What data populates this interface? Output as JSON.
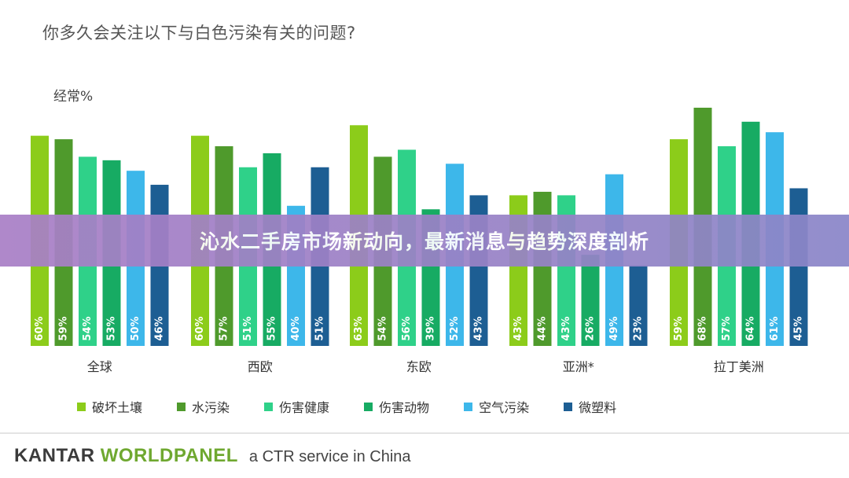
{
  "banner": {
    "text": "沁水二手房市场新动向，最新消息与趋势深度剖析"
  },
  "footer": {
    "brand_left": "KANTAR ",
    "brand_right": "WORLDPANEL",
    "tagline": "a CTR service in China"
  },
  "chart_data": {
    "type": "bar",
    "title": "你多久会关注以下与白色污染有关的问题?",
    "ylabel": "经常%",
    "ylim": [
      0,
      70
    ],
    "grid": false,
    "legend_position": "bottom",
    "categories": [
      "全球",
      "西欧",
      "东欧",
      "亚洲*",
      "拉丁美洲"
    ],
    "series": [
      {
        "name": "破坏土壤",
        "color": "#8ccc1a",
        "values": [
          60,
          60,
          63,
          43,
          59
        ]
      },
      {
        "name": "水污染",
        "color": "#4f9a2c",
        "values": [
          59,
          57,
          54,
          44,
          68
        ]
      },
      {
        "name": "伤害健康",
        "color": "#2fd189",
        "values": [
          54,
          51,
          56,
          43,
          57
        ]
      },
      {
        "name": "伤害动物",
        "color": "#17ab63",
        "values": [
          53,
          55,
          39,
          26,
          64
        ]
      },
      {
        "name": "空气污染",
        "color": "#3db7ea",
        "values": [
          50,
          40,
          52,
          49,
          61
        ]
      },
      {
        "name": "微塑料",
        "color": "#1d5e93",
        "values": [
          46,
          51,
          43,
          23,
          45
        ]
      }
    ],
    "value_suffix": "%"
  }
}
